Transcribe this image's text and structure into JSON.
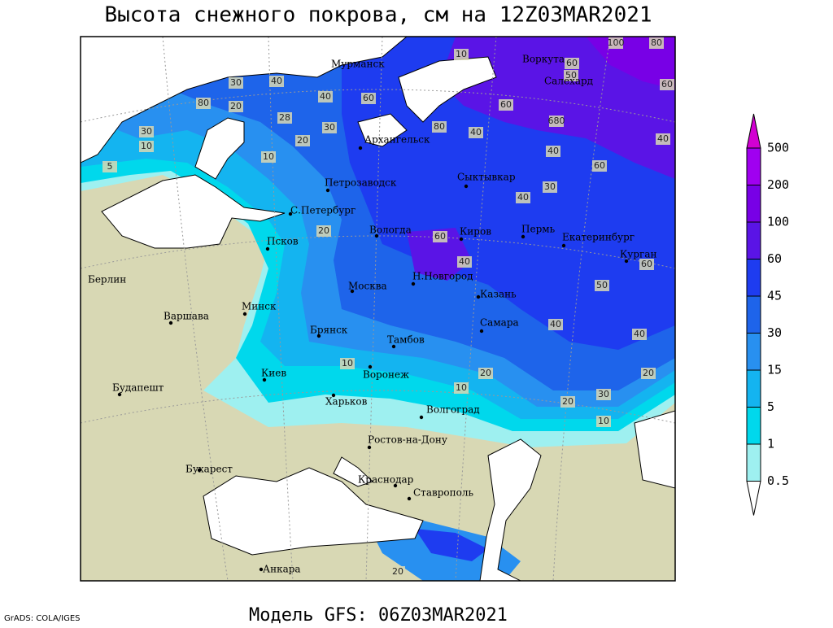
{
  "title": "Высота снежного покрова, см на 12Z03MAR2021",
  "model": "Модель GFS: 06Z03MAR2021",
  "credit": "GrADS: COLA/IGES",
  "cities": [
    "Мурманск",
    "Архангельск",
    "Петрозаводск",
    "Сыктывкар",
    "С.Петербург",
    "Вологда",
    "Киров",
    "Пермь",
    "Екатеринбург",
    "Курган",
    "Псков",
    "Н.Новгород",
    "Казань",
    "Москва",
    "Берлин",
    "Минск",
    "Варшава",
    "Брянск",
    "Тамбов",
    "Самара",
    "Киев",
    "Воронеж",
    "Будапешт",
    "Харьков",
    "Волгоград",
    "Ростов-на-Дону",
    "Бухарест",
    "Краснодар",
    "Ставрополь",
    "Анкара",
    "Воркута",
    "Салехард"
  ],
  "contour_labels": [
    100,
    80,
    10,
    60,
    50,
    30,
    40,
    80,
    20,
    28,
    40,
    30,
    60,
    80,
    40,
    60,
    680,
    40,
    60,
    40,
    30,
    40,
    60,
    10,
    20,
    20,
    60,
    40,
    40,
    40,
    20,
    30,
    20,
    10,
    10,
    10,
    20,
    20,
    60,
    50,
    10,
    30,
    5
  ],
  "legend": {
    "labels": [
      500,
      200,
      100,
      60,
      45,
      30,
      15,
      5,
      1,
      0.5
    ],
    "colors": [
      "#d200d2",
      "#a000f0",
      "#7800e6",
      "#5a14e6",
      "#1e3cf0",
      "#1e64ea",
      "#2890f0",
      "#14b4f0",
      "#00d8ec",
      "#9ef0f0",
      "#ffffff"
    ]
  }
}
